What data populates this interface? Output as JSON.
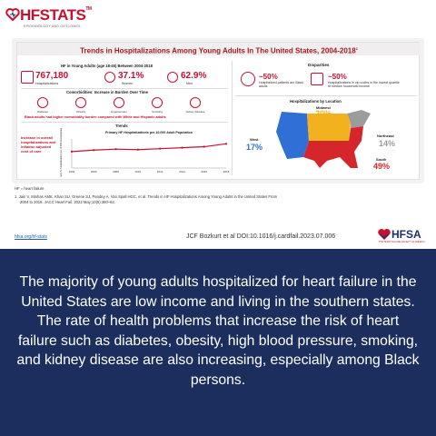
{
  "logo": {
    "brand": "HFSTATS",
    "tm": "TM",
    "subtitle": "EPIDEMIOLOGY AND OUTCOMES"
  },
  "infographic": {
    "title": "Trends in Hospitalizations Among Young Adults In The United States, 2004-2018",
    "title_sup": "1",
    "hf_section": "HF in Young Adults (age 18-45) Between 2004-2018",
    "stats": [
      {
        "value": "767,180",
        "label": "Hospitalizations"
      },
      {
        "value": "37.1%",
        "label": "Women"
      },
      {
        "value": "62.9%",
        "label": "Men"
      }
    ],
    "comorbidities_title": "Comorbidities: Increase in Burden Over Time",
    "comorbidities": [
      "Diabetes",
      "Obesity",
      "Hypertension",
      "Smoking",
      "Kidney Disease"
    ],
    "comorbidity_note": "Black adults had higher comorbidity burden compared with White and Hispanic adults",
    "trends_title": "Trends",
    "trend_note": "Increase in overall hospitalizations and inflation adjusted cost of care",
    "disparities_title": "Disparities",
    "disparities": [
      {
        "value": "~50%",
        "label": "Hospitalized patients are Black adults"
      },
      {
        "value": "~50%",
        "label": "Hospitalizations in zip codes in the lowest quartile of median household income"
      }
    ],
    "location_title": "Hospitalizations by Location",
    "regions": [
      {
        "name": "West",
        "value": "17%",
        "color": "#2f6fd6"
      },
      {
        "name": "Midwest",
        "value": "20%",
        "color": "#f2b21f"
      },
      {
        "name": "Northeast",
        "value": "14%",
        "color": "#9c9c9c"
      },
      {
        "name": "South",
        "value": "49%",
        "color": "#d5262b"
      }
    ]
  },
  "chart_data": {
    "type": "line",
    "title": "Primary HF Hospitalizations per 10,000 Adult Population",
    "ylabel": "Primary HF hospitalizations per 10,000 adult population",
    "x": [
      2004,
      2006,
      2008,
      2010,
      2012,
      2014,
      2016,
      2018
    ],
    "values": [
      1.7,
      1.85,
      1.95,
      1.9,
      2.0,
      2.1,
      2.2,
      2.5
    ],
    "xtick_labels": [
      "2004",
      "2006",
      "2008",
      "2010",
      "2012",
      "2014",
      "2016",
      "2018"
    ],
    "ylim": [
      0,
      3
    ],
    "grid": false
  },
  "footnotes": {
    "hf": "HF = heart failure",
    "ref_line1": "1. Jain V, Minhas AMK, Khan SU, Greene SJ, Pandey A, Van Spall HGC, et al. Trends in HF Hospitalizations Among Young Adults in the United States From",
    "ref_line2": "2004 to 2018. JACC Heart Fail. 2022 May;10(5):350–62.",
    "link": "hfsa.org/hf-stats",
    "doi": "JCF Bozkurt et al DOI:10.1016/j.cardfail.2023.07.006"
  },
  "hfsa": {
    "name": "HFSA",
    "tagline": "THE HEART FAILURE SOCIETY OF AMERICA"
  },
  "summary": "The majority of young adults hospitalized for heart failure in the United States are low income and living in the southern states. The rate of health problems that increase the risk of heart failure such as diabetes, obesity, high blood pressure, smoking, and kidney disease are also increasing, especially among Black persons."
}
